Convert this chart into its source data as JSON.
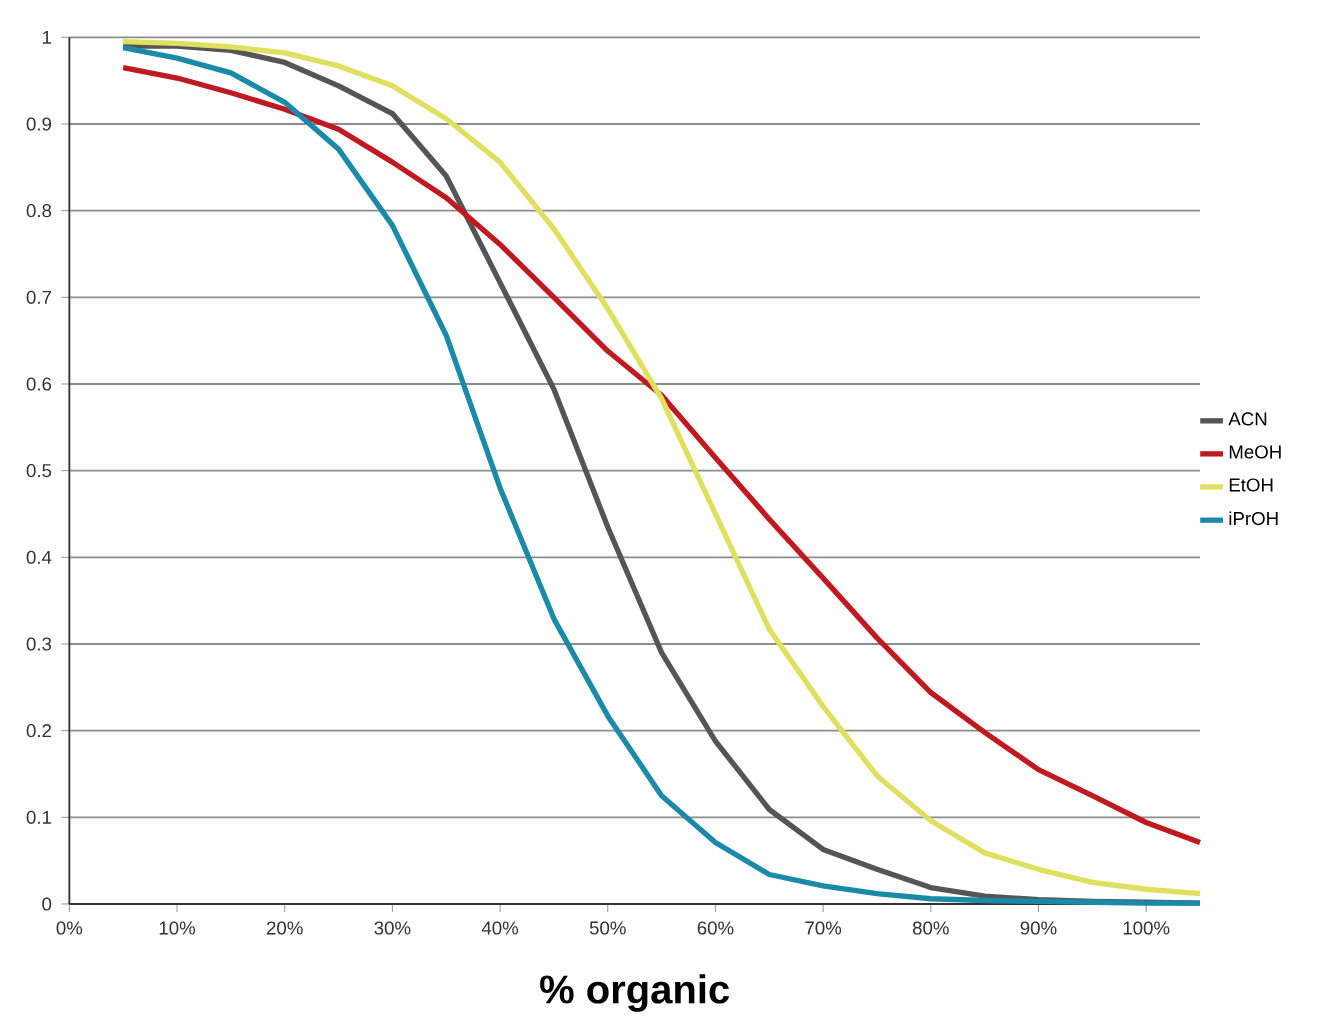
{
  "chart_data": {
    "type": "line",
    "xlabel": "% organic",
    "x": [
      5,
      10,
      15,
      20,
      25,
      30,
      35,
      40,
      45,
      50,
      55,
      60,
      65,
      70,
      75,
      80,
      85,
      90,
      95,
      100,
      105
    ],
    "series": [
      {
        "name": "ACN",
        "color": "#555555",
        "values": [
          0.99,
          0.99,
          0.985,
          0.971,
          0.944,
          0.912,
          0.84,
          0.717,
          0.594,
          0.435,
          0.29,
          0.188,
          0.109,
          0.063,
          0.04,
          0.019,
          0.009,
          0.005,
          0.003,
          0.002,
          0.001
        ]
      },
      {
        "name": "MeOH",
        "color": "#c0191f",
        "values": [
          0.965,
          0.953,
          0.936,
          0.917,
          0.894,
          0.856,
          0.815,
          0.761,
          0.7,
          0.638,
          0.587,
          0.515,
          0.444,
          0.376,
          0.307,
          0.244,
          0.198,
          0.155,
          0.125,
          0.094,
          0.071
        ]
      },
      {
        "name": "EtOH",
        "color": "#e0e060",
        "values": [
          0.995,
          0.993,
          0.989,
          0.982,
          0.967,
          0.944,
          0.906,
          0.856,
          0.779,
          0.687,
          0.583,
          0.45,
          0.317,
          0.228,
          0.148,
          0.096,
          0.059,
          0.04,
          0.025,
          0.017,
          0.012
        ]
      },
      {
        "name": "iPrOH",
        "color": "#1a8aa8",
        "values": [
          0.988,
          0.976,
          0.959,
          0.925,
          0.871,
          0.783,
          0.656,
          0.48,
          0.329,
          0.217,
          0.125,
          0.071,
          0.034,
          0.021,
          0.012,
          0.006,
          0.004,
          0.003,
          0.002,
          0.001,
          0.001
        ]
      }
    ],
    "xlim": [
      0,
      105
    ],
    "xticks": [
      {
        "value": 0,
        "label": "0%"
      },
      {
        "value": 10,
        "label": "10%"
      },
      {
        "value": 20,
        "label": "20%"
      },
      {
        "value": 30,
        "label": "30%"
      },
      {
        "value": 40,
        "label": "40%"
      },
      {
        "value": 50,
        "label": "50%"
      },
      {
        "value": 60,
        "label": "60%"
      },
      {
        "value": 70,
        "label": "70%"
      },
      {
        "value": 80,
        "label": "80%"
      },
      {
        "value": 90,
        "label": "90%"
      },
      {
        "value": 100,
        "label": "100%"
      }
    ],
    "ylim": [
      0,
      1
    ],
    "yticks": [
      0,
      0.1,
      0.2,
      0.3,
      0.4,
      0.5,
      0.6,
      0.7,
      0.8,
      0.9,
      1
    ],
    "grid": "y",
    "legend": "right",
    "marker": "none",
    "line_style": "solid"
  }
}
